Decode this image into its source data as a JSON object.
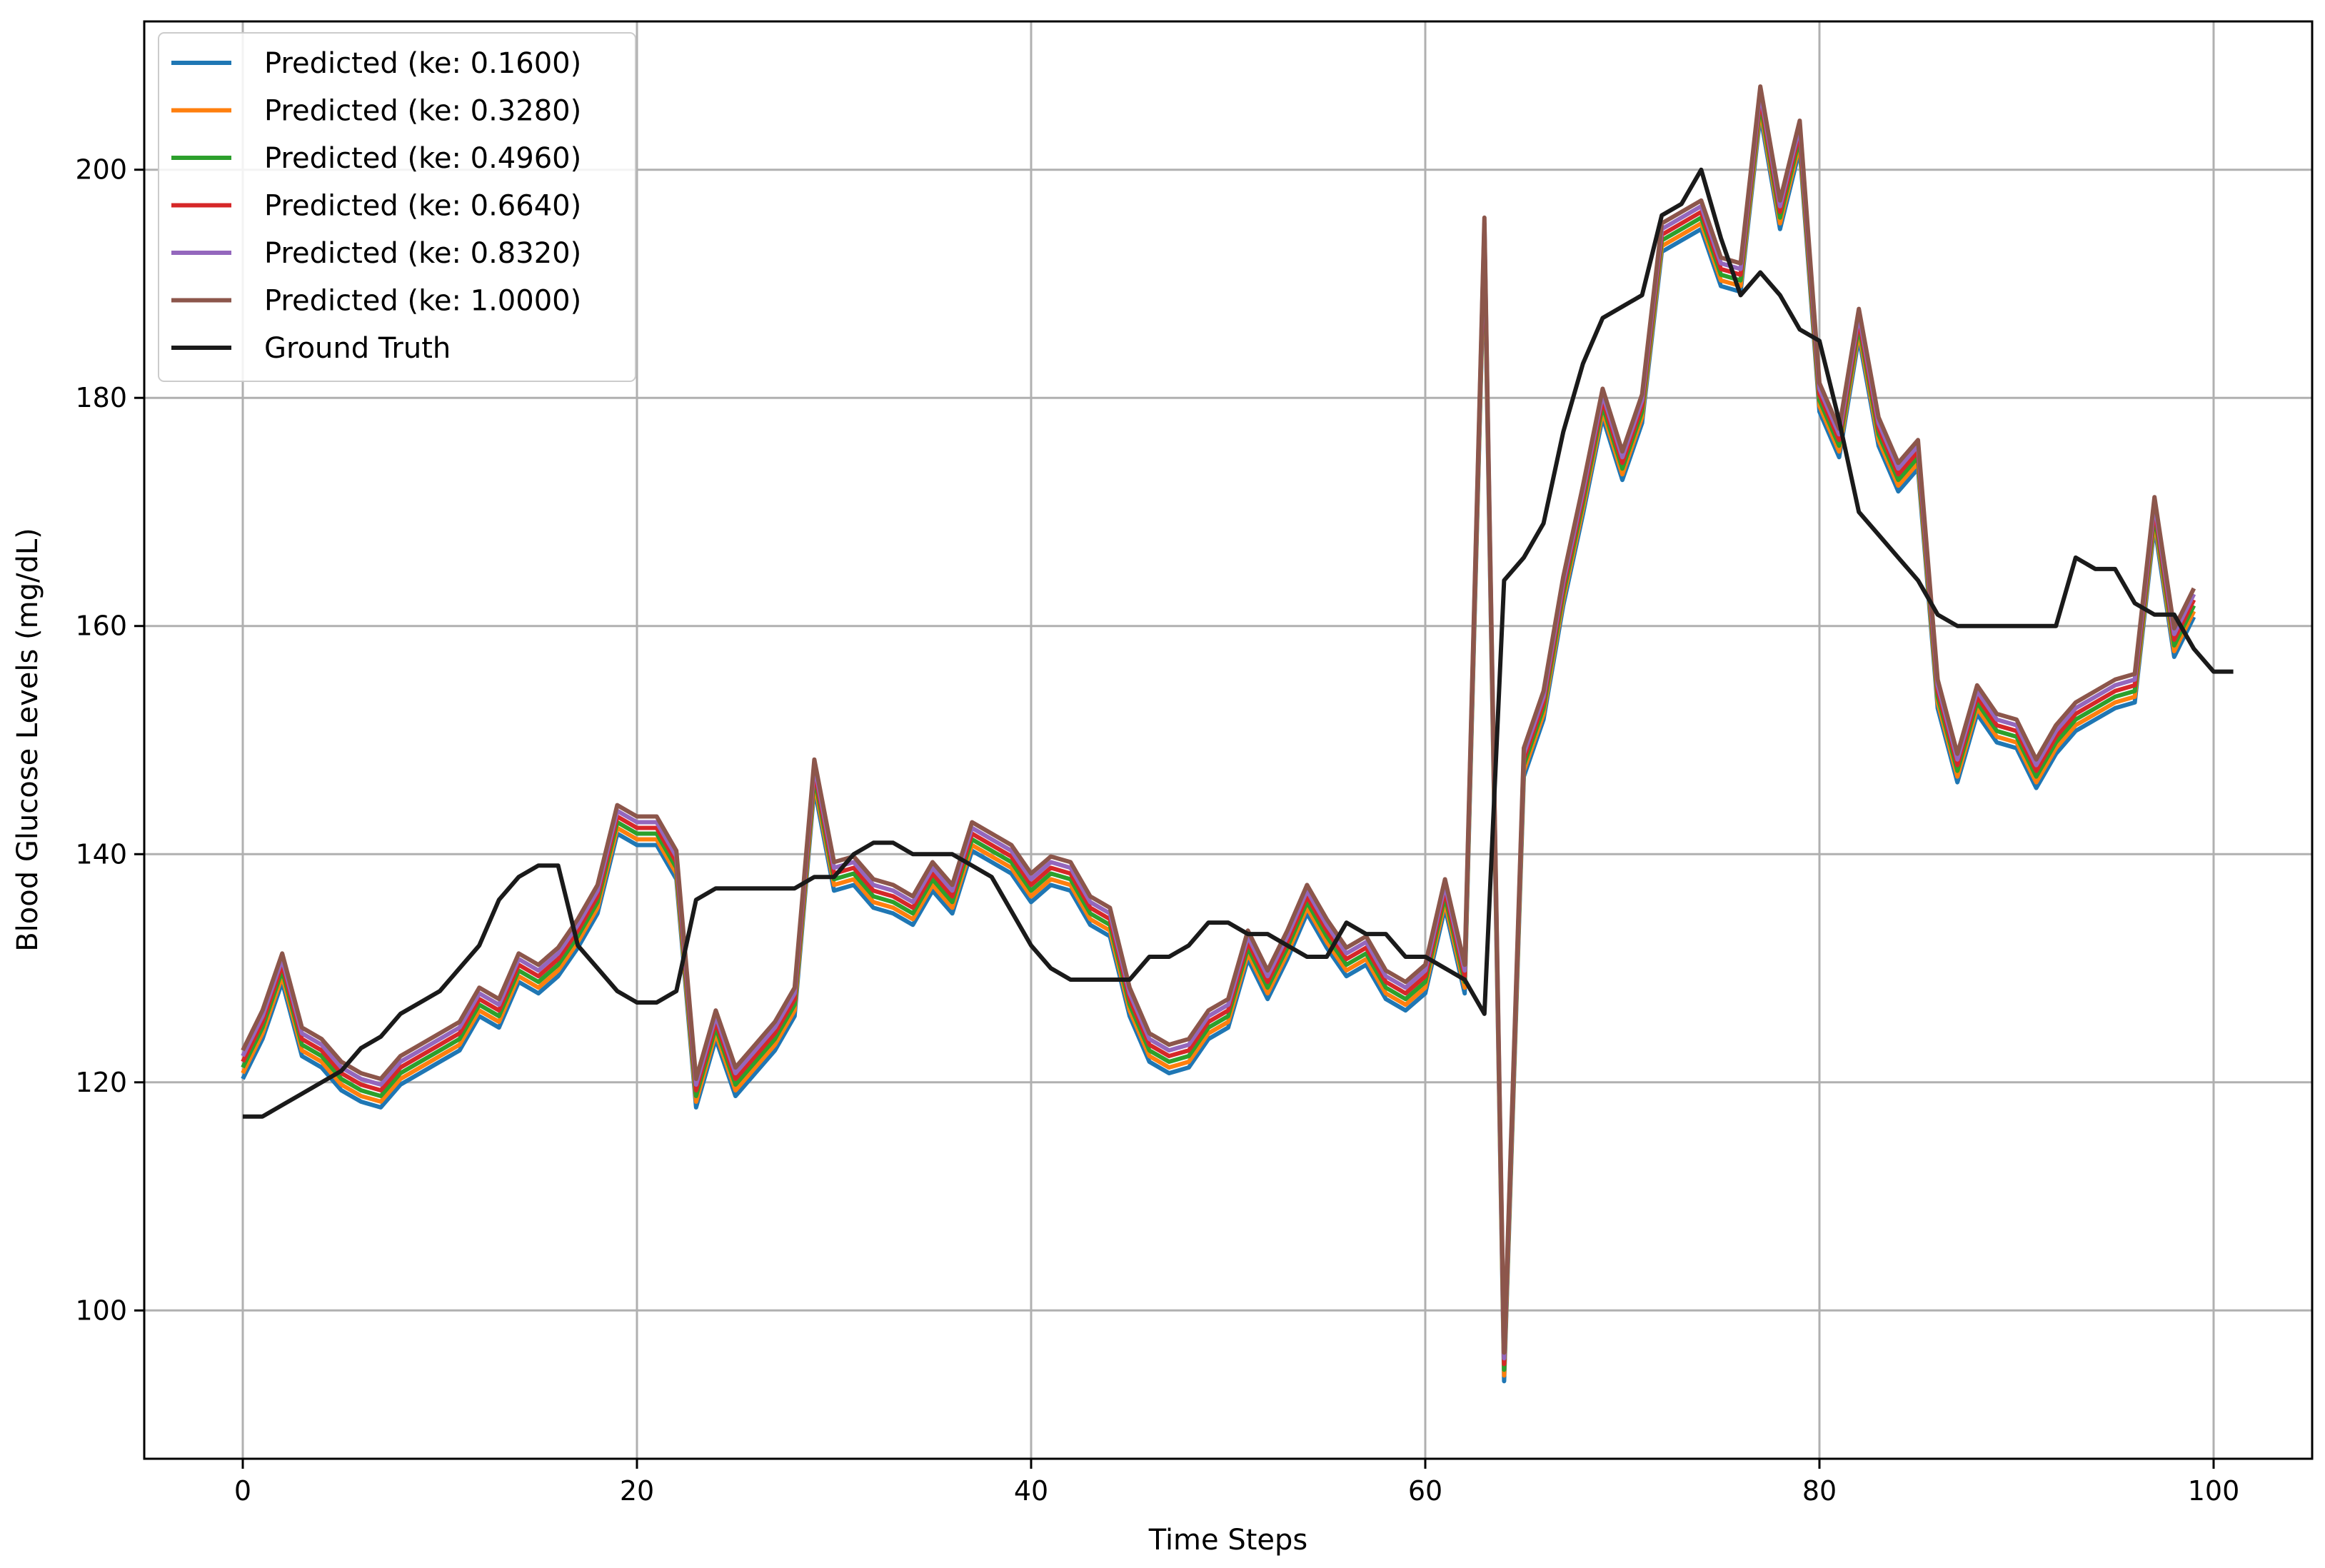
{
  "chart_data": {
    "type": "line",
    "title": "",
    "xlabel": "Time Steps",
    "ylabel": "Blood Glucose Levels (mg/dL)",
    "xlim": [
      -5,
      105
    ],
    "ylim": [
      87,
      213
    ],
    "xticks": [
      0,
      20,
      40,
      60,
      80,
      100
    ],
    "yticks": [
      100,
      120,
      140,
      160,
      180,
      200
    ],
    "grid": true,
    "legend_position": "top-left",
    "series": [
      {
        "name": "Predicted (ke: 0.1600)",
        "color": "#1f77b4",
        "offset": -1.2
      },
      {
        "name": "Predicted (ke: 0.3280)",
        "color": "#ff7f0e",
        "offset": -0.7
      },
      {
        "name": "Predicted (ke: 0.4960)",
        "color": "#2ca02c",
        "offset": -0.2
      },
      {
        "name": "Predicted (ke: 0.6640)",
        "color": "#d62728",
        "offset": 0.3
      },
      {
        "name": "Predicted (ke: 0.8320)",
        "color": "#9467bd",
        "offset": 0.8
      },
      {
        "name": "Predicted (ke: 1.0000)",
        "color": "#8c564b",
        "offset": 1.3
      }
    ],
    "predicted_base": [
      121.5,
      125,
      130,
      123.5,
      122.5,
      120.5,
      119.5,
      119,
      121,
      122,
      123,
      124,
      127,
      126,
      130,
      129,
      130.5,
      133,
      136,
      143,
      142,
      142,
      139,
      119,
      125,
      120,
      122,
      124,
      127,
      147,
      138,
      138.5,
      136.5,
      136,
      135,
      138,
      136,
      141.5,
      140.5,
      139.5,
      137,
      138.5,
      138,
      135,
      134,
      127,
      123,
      122,
      122.5,
      125,
      126,
      132,
      128.5,
      132,
      136,
      133,
      130.5,
      131.5,
      128.5,
      127.5,
      129,
      136.5,
      129,
      194.5,
      95,
      148,
      153,
      163,
      171,
      179.5,
      174,
      179,
      194,
      195,
      196,
      191,
      190.5,
      206,
      196,
      203,
      180,
      176,
      186.5,
      177,
      173,
      175,
      154,
      147.5,
      153.5,
      151,
      150.5,
      147,
      150,
      152,
      153,
      154,
      154.5,
      170,
      158.5,
      162
    ],
    "ground_truth": {
      "name": "Ground Truth",
      "color": "#1a1a1a",
      "values": [
        117,
        117,
        118,
        119,
        120,
        121,
        123,
        124,
        126,
        127,
        128,
        130,
        132,
        136,
        138,
        139,
        139,
        132,
        130,
        128,
        127,
        127,
        128,
        136,
        137,
        137,
        137,
        137,
        137,
        138,
        138,
        140,
        141,
        141,
        140,
        140,
        140,
        139,
        138,
        135,
        132,
        130,
        129,
        129,
        129,
        129,
        131,
        131,
        132,
        134,
        134,
        133,
        133,
        132,
        131,
        131,
        134,
        133,
        133,
        131,
        131,
        130,
        129,
        126,
        164,
        166,
        169,
        177,
        183,
        187,
        188,
        189,
        196,
        197,
        200,
        194,
        189,
        191,
        189,
        186,
        185,
        178,
        170,
        168,
        166,
        164,
        161,
        160,
        160,
        160,
        160,
        160,
        160,
        166,
        165,
        165,
        162,
        161,
        161,
        158,
        156,
        156
      ]
    }
  }
}
